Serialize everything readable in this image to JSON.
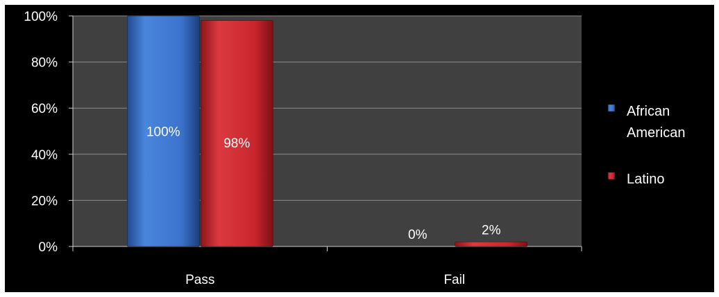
{
  "chart_data": {
    "type": "bar",
    "categories": [
      "Pass",
      "Fail"
    ],
    "series": [
      {
        "name": "African American",
        "values": [
          100,
          0
        ],
        "labels": [
          "100%",
          "0%"
        ],
        "color": "#3a6fc6"
      },
      {
        "name": "Latino",
        "values": [
          98,
          2
        ],
        "labels": [
          "98%",
          "2%"
        ],
        "color": "#c9252d"
      }
    ],
    "ylim": [
      0,
      100
    ],
    "yticks": [
      {
        "value": 0,
        "label": "0%"
      },
      {
        "value": 20,
        "label": "20%"
      },
      {
        "value": 40,
        "label": "40%"
      },
      {
        "value": 60,
        "label": "60%"
      },
      {
        "value": 80,
        "label": "80%"
      },
      {
        "value": 100,
        "label": "100%"
      }
    ],
    "grid": true,
    "legend_position": "right",
    "colors": {
      "background": "#000000",
      "plot_area": "#404040",
      "gridline": "#8c8c8c"
    }
  }
}
